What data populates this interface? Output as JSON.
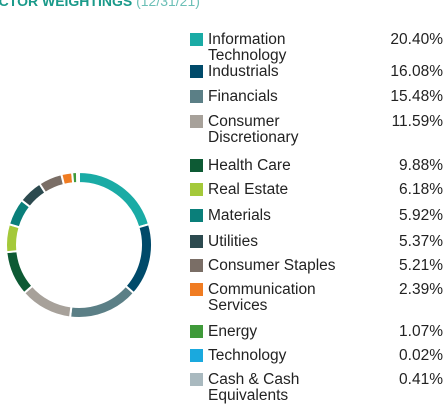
{
  "chart_data": {
    "type": "pie",
    "title": "SECTOR WEIGHTINGS",
    "subtitle": "(12/31/21)",
    "categories": [
      "Information Technology",
      "Industrials",
      "Financials",
      "Consumer Discretionary",
      "Health Care",
      "Real Estate",
      "Materials",
      "Utilities",
      "Consumer Staples",
      "Communication Services",
      "Energy",
      "Technology",
      "Cash & Cash Equivalents"
    ],
    "values": [
      20.4,
      16.08,
      15.48,
      11.59,
      9.88,
      6.18,
      5.92,
      5.37,
      5.21,
      2.39,
      1.07,
      0.02,
      0.41
    ],
    "value_labels": [
      "20.40%",
      "16.08%",
      "15.48%",
      "11.59%",
      "9.88%",
      "6.18%",
      "5.92%",
      "5.37%",
      "5.21%",
      "2.39%",
      "1.07%",
      "0.02%",
      "0.41%"
    ],
    "colors": [
      "#1aaba5",
      "#004a6a",
      "#5b7f86",
      "#a7a19a",
      "#0d5a34",
      "#a4c93a",
      "#0a7f7a",
      "#2c4a4f",
      "#7a6e66",
      "#f07c22",
      "#3f9a3a",
      "#1aa9de",
      "#a9b9bf"
    ]
  }
}
